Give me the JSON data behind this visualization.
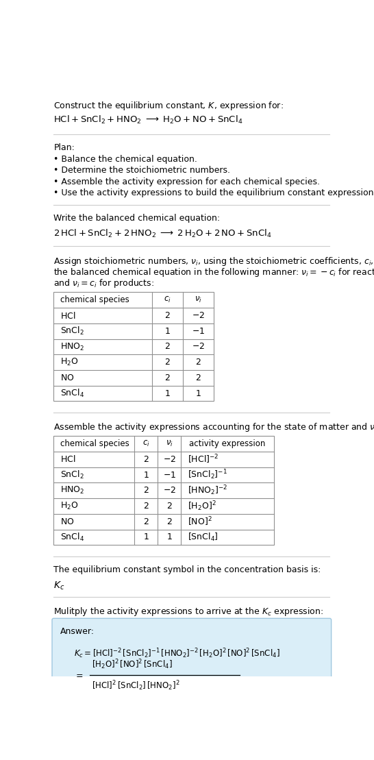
{
  "title_line1": "Construct the equilibrium constant, $K$, expression for:",
  "title_line2": "$\\mathrm{HCl + SnCl_2 + HNO_2 \\;\\longrightarrow\\; H_2O + NO + SnCl_4}$",
  "plan_header": "Plan:",
  "plan_items": [
    "• Balance the chemical equation.",
    "• Determine the stoichiometric numbers.",
    "• Assemble the activity expression for each chemical species.",
    "• Use the activity expressions to build the equilibrium constant expression."
  ],
  "balanced_header": "Write the balanced chemical equation:",
  "balanced_eq": "$\\mathrm{2\\,HCl + SnCl_2 + 2\\,HNO_2 \\;\\longrightarrow\\; 2\\,H_2O + 2\\,NO + SnCl_4}$",
  "table1_cols": [
    "chemical species",
    "$c_i$",
    "$\\nu_i$"
  ],
  "table1_data": [
    [
      "$\\mathrm{HCl}$",
      "2",
      "$-2$"
    ],
    [
      "$\\mathrm{SnCl_2}$",
      "1",
      "$-1$"
    ],
    [
      "$\\mathrm{HNO_2}$",
      "2",
      "$-2$"
    ],
    [
      "$\\mathrm{H_2O}$",
      "2",
      "2"
    ],
    [
      "$\\mathrm{NO}$",
      "2",
      "2"
    ],
    [
      "$\\mathrm{SnCl_4}$",
      "1",
      "1"
    ]
  ],
  "activity_header": "Assemble the activity expressions accounting for the state of matter and $\\nu_i$:",
  "table2_cols": [
    "chemical species",
    "$c_i$",
    "$\\nu_i$",
    "activity expression"
  ],
  "table2_data": [
    [
      "$\\mathrm{HCl}$",
      "2",
      "$-2$",
      "$[\\mathrm{HCl}]^{-2}$"
    ],
    [
      "$\\mathrm{SnCl_2}$",
      "1",
      "$-1$",
      "$[\\mathrm{SnCl_2}]^{-1}$"
    ],
    [
      "$\\mathrm{HNO_2}$",
      "2",
      "$-2$",
      "$[\\mathrm{HNO_2}]^{-2}$"
    ],
    [
      "$\\mathrm{H_2O}$",
      "2",
      "2",
      "$[\\mathrm{H_2O}]^{2}$"
    ],
    [
      "$\\mathrm{NO}$",
      "2",
      "2",
      "$[\\mathrm{NO}]^{2}$"
    ],
    [
      "$\\mathrm{SnCl_4}$",
      "1",
      "1",
      "$[\\mathrm{SnCl_4}]$"
    ]
  ],
  "kc_header": "The equilibrium constant symbol in the concentration basis is:",
  "kc_symbol": "$K_c$",
  "multiply_header": "Mulitply the activity expressions to arrive at the $K_c$ expression:",
  "answer_line1": "$K_c = [\\mathrm{HCl}]^{-2}\\,[\\mathrm{SnCl_2}]^{-1}\\,[\\mathrm{HNO_2}]^{-2}\\,[\\mathrm{H_2O}]^{2}\\,[\\mathrm{NO}]^{2}\\,[\\mathrm{SnCl_4}]$",
  "answer_eq": "$=$",
  "answer_line2_num": "$[\\mathrm{H_2O}]^{2}\\,[\\mathrm{NO}]^{2}\\,[\\mathrm{SnCl_4}]$",
  "answer_line2_den": "$[\\mathrm{HCl}]^{2}\\,[\\mathrm{SnCl_2}]\\,[\\mathrm{HNO_2}]^{2}$",
  "bg_color": "#ffffff",
  "text_color": "#000000",
  "table_border_color": "#909090",
  "answer_box_color": "#daeef8",
  "answer_box_border": "#a0c8e0",
  "separator_color": "#cccccc",
  "font_size": 9,
  "stoich_header_line1": "Assign stoichiometric numbers, $\\nu_i$, using the stoichiometric coefficients, $c_i$, from",
  "stoich_header_line2": "the balanced chemical equation in the following manner: $\\nu_i = -c_i$ for reactants",
  "stoich_header_line3": "and $\\nu_i = c_i$ for products:"
}
